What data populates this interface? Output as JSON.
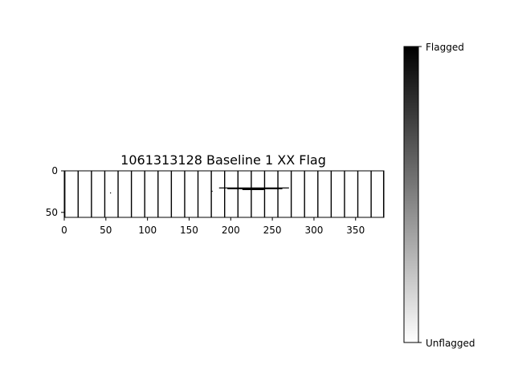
{
  "chart_data": {
    "type": "heatmap",
    "title": "1061313128 Baseline 1 XX Flag",
    "xlabel": "",
    "ylabel": "",
    "x_range": [
      0,
      384
    ],
    "y_range": [
      0,
      56
    ],
    "y_inverted": true,
    "x_ticks": [
      0,
      50,
      100,
      150,
      200,
      250,
      300,
      350
    ],
    "y_ticks": [
      0,
      50
    ],
    "grid": false,
    "colormap": "gray_r",
    "colorbar": {
      "position": "right",
      "top_label": "Flagged",
      "bottom_label": "Unflagged",
      "top_color": "#000000",
      "bottom_color": "#ffffff"
    },
    "flagged_columns": [
      0,
      16,
      32,
      48,
      64,
      80,
      96,
      112,
      128,
      144,
      160,
      176,
      192,
      208,
      224,
      240,
      256,
      272,
      288,
      304,
      320,
      336,
      352,
      368,
      383
    ],
    "flagged_segments": [
      {
        "y": 20,
        "x_start": 186,
        "x_end": 270
      },
      {
        "y": 21,
        "x_start": 196,
        "x_end": 262
      },
      {
        "y": 22,
        "x_start": 214,
        "x_end": 240
      }
    ],
    "flagged_points": [
      {
        "x": 55,
        "y": 26
      },
      {
        "x": 177,
        "y": 24
      }
    ]
  }
}
